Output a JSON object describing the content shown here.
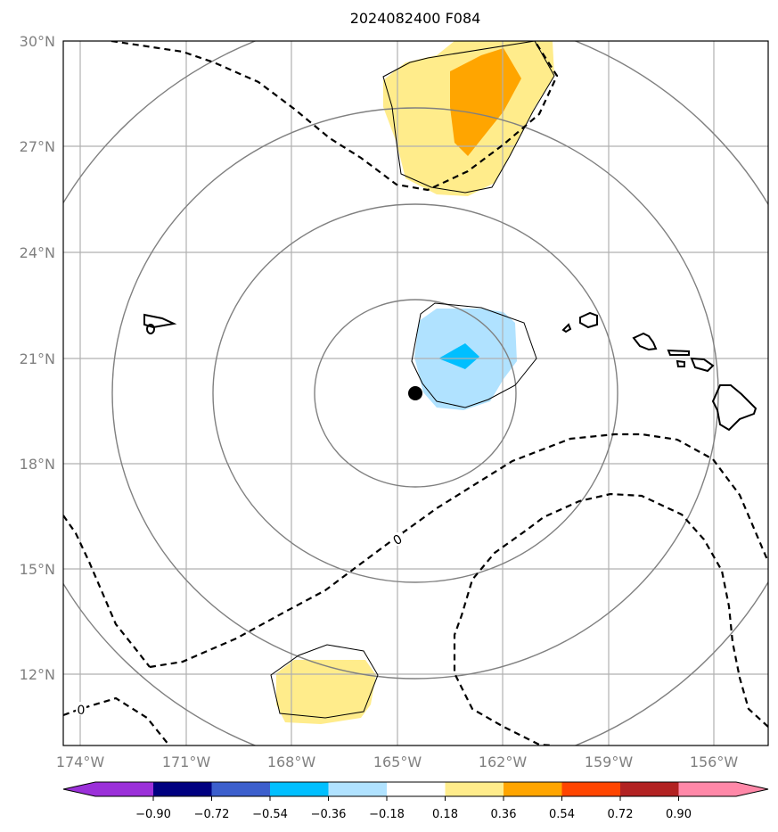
{
  "title": "2024082400 F084",
  "map": {
    "lat_ticks": [
      "30°N",
      "27°N",
      "24°N",
      "21°N",
      "18°N",
      "15°N",
      "12°N"
    ],
    "lon_ticks": [
      "174°W",
      "171°W",
      "168°W",
      "165°W",
      "162°W",
      "159°W",
      "156°W"
    ],
    "contour_labels": [
      "0",
      "0"
    ],
    "center_marker": "storm-center",
    "colors": {
      "frame": "#000000",
      "grid": "#b0b0b0",
      "range_rings": "#808080",
      "coast": "#000000",
      "dashed_contour": "#000000",
      "marker": "#000000"
    }
  },
  "colorbar": {
    "ticks": [
      "−0.90",
      "−0.72",
      "−0.54",
      "−0.36",
      "−0.18",
      "0.18",
      "0.36",
      "0.54",
      "0.72",
      "0.90"
    ],
    "colors": [
      "#9b30d9",
      "#000080",
      "#3c5fcd",
      "#00bfff",
      "#b0e2ff",
      "#ffffff",
      "#ffec8b",
      "#ffa500",
      "#ff4500",
      "#b22222",
      "#ff88a8"
    ]
  }
}
